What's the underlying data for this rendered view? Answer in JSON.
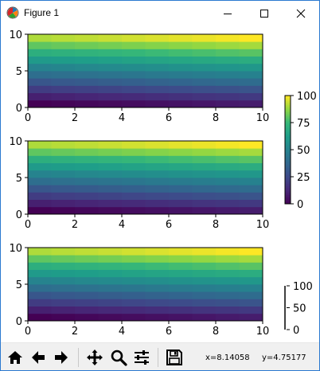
{
  "window": {
    "title": "Figure 1",
    "app_icon": "matplotlib-figure-icon",
    "minimize_icon": "minimize-icon",
    "maximize_icon": "maximize-icon",
    "close_icon": "close-icon"
  },
  "toolbar": {
    "buttons": [
      "home-icon",
      "back-icon",
      "forward-icon",
      "pan-icon",
      "zoom-icon",
      "configure-subplots-icon",
      "save-icon"
    ],
    "coord_x": "x=8.14058",
    "coord_y": "y=4.75177"
  },
  "chart_data": [
    {
      "type": "heatmap",
      "title": "",
      "xlabel": "",
      "ylabel": "",
      "xlim": [
        0,
        10
      ],
      "ylim": [
        0,
        10
      ],
      "xticks": [
        "0",
        "2",
        "4",
        "6",
        "8",
        "10"
      ],
      "yticks": [
        "0",
        "5",
        "10"
      ],
      "grid": false,
      "colormap": "viridis",
      "values_description_rows": 10,
      "values_description_cols": 10,
      "values": [
        [
          0,
          1,
          2,
          3,
          4,
          5,
          6,
          7,
          8,
          9
        ],
        [
          10,
          11,
          12,
          13,
          14,
          15,
          16,
          17,
          18,
          19
        ],
        [
          20,
          21,
          22,
          23,
          24,
          25,
          26,
          27,
          28,
          29
        ],
        [
          30,
          31,
          32,
          33,
          34,
          35,
          36,
          37,
          38,
          39
        ],
        [
          40,
          41,
          42,
          43,
          44,
          45,
          46,
          47,
          48,
          49
        ],
        [
          50,
          51,
          52,
          53,
          54,
          55,
          56,
          57,
          58,
          59
        ],
        [
          60,
          61,
          62,
          63,
          64,
          65,
          66,
          67,
          68,
          69
        ],
        [
          70,
          71,
          72,
          73,
          74,
          75,
          76,
          77,
          78,
          79
        ],
        [
          80,
          81,
          82,
          83,
          84,
          85,
          86,
          87,
          88,
          89
        ],
        [
          90,
          91,
          92,
          93,
          94,
          95,
          96,
          97,
          98,
          99
        ]
      ]
    },
    {
      "type": "heatmap",
      "title": "",
      "xlabel": "",
      "ylabel": "",
      "xlim": [
        0,
        10
      ],
      "ylim": [
        0,
        10
      ],
      "xticks": [
        "0",
        "2",
        "4",
        "6",
        "8",
        "10"
      ],
      "yticks": [
        "0",
        "5",
        "10"
      ],
      "grid": false,
      "colormap": "viridis",
      "values": [
        [
          0,
          1,
          2,
          3,
          4,
          5,
          6,
          7,
          8,
          9
        ],
        [
          10,
          11,
          12,
          13,
          14,
          15,
          16,
          17,
          18,
          19
        ],
        [
          20,
          21,
          22,
          23,
          24,
          25,
          26,
          27,
          28,
          29
        ],
        [
          30,
          31,
          32,
          33,
          34,
          35,
          36,
          37,
          38,
          39
        ],
        [
          40,
          41,
          42,
          43,
          44,
          45,
          46,
          47,
          48,
          49
        ],
        [
          50,
          51,
          52,
          53,
          54,
          55,
          56,
          57,
          58,
          59
        ],
        [
          60,
          61,
          62,
          63,
          64,
          65,
          66,
          67,
          68,
          69
        ],
        [
          70,
          71,
          72,
          73,
          74,
          75,
          76,
          77,
          78,
          79
        ],
        [
          80,
          81,
          82,
          83,
          84,
          85,
          86,
          87,
          88,
          89
        ],
        [
          90,
          91,
          92,
          93,
          94,
          95,
          96,
          97,
          98,
          99
        ]
      ]
    },
    {
      "type": "heatmap",
      "title": "",
      "xlabel": "",
      "ylabel": "",
      "xlim": [
        0,
        10
      ],
      "ylim": [
        0,
        10
      ],
      "xticks": [
        "0",
        "2",
        "4",
        "6",
        "8",
        "10"
      ],
      "yticks": [
        "0",
        "5",
        "10"
      ],
      "grid": false,
      "colormap": "viridis",
      "values": [
        [
          0,
          1,
          2,
          3,
          4,
          5,
          6,
          7,
          8,
          9
        ],
        [
          10,
          11,
          12,
          13,
          14,
          15,
          16,
          17,
          18,
          19
        ],
        [
          20,
          21,
          22,
          23,
          24,
          25,
          26,
          27,
          28,
          29
        ],
        [
          30,
          31,
          32,
          33,
          34,
          35,
          36,
          37,
          38,
          39
        ],
        [
          40,
          41,
          42,
          43,
          44,
          45,
          46,
          47,
          48,
          49
        ],
        [
          50,
          51,
          52,
          53,
          54,
          55,
          56,
          57,
          58,
          59
        ],
        [
          60,
          61,
          62,
          63,
          64,
          65,
          66,
          67,
          68,
          69
        ],
        [
          70,
          71,
          72,
          73,
          74,
          75,
          76,
          77,
          78,
          79
        ],
        [
          80,
          81,
          82,
          83,
          84,
          85,
          86,
          87,
          88,
          89
        ],
        [
          90,
          91,
          92,
          93,
          94,
          95,
          96,
          97,
          98,
          99
        ]
      ]
    }
  ],
  "colorbars": [
    {
      "range": [
        0,
        100
      ],
      "ticks": [
        "0",
        "25",
        "50",
        "75",
        "100"
      ],
      "colormap": "viridis"
    },
    {
      "range": [
        0,
        100
      ],
      "ticks": [
        "0",
        "50",
        "100"
      ],
      "colormap": "none"
    }
  ]
}
